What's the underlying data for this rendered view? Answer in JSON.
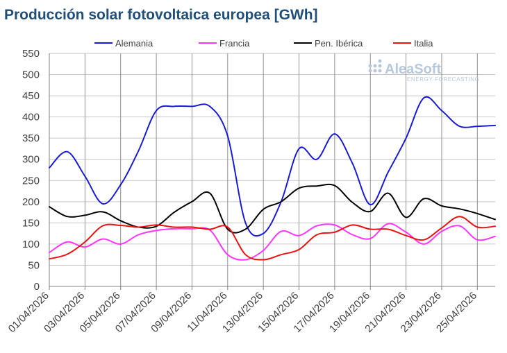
{
  "chart_data": {
    "type": "line",
    "title": "Producción solar fotovoltaica europea [GWh]",
    "xlabel": "",
    "ylabel": "",
    "ylim": [
      0,
      550
    ],
    "yticks": [
      0,
      50,
      100,
      150,
      200,
      250,
      300,
      350,
      400,
      450,
      500,
      550
    ],
    "grid": true,
    "legend_position": "top",
    "categories": [
      "01/04/2026",
      "02/04/2026",
      "03/04/2026",
      "04/04/2026",
      "05/04/2026",
      "06/04/2026",
      "07/04/2026",
      "08/04/2026",
      "09/04/2026",
      "10/04/2026",
      "11/04/2026",
      "12/04/2026",
      "13/04/2026",
      "14/04/2026",
      "15/04/2026",
      "16/04/2026",
      "17/04/2026",
      "18/04/2026",
      "19/04/2026",
      "20/04/2026",
      "21/04/2026",
      "22/04/2026",
      "23/04/2026",
      "24/04/2026",
      "25/04/2026",
      "26/04/2026"
    ],
    "xtick_labels": [
      "01/04/2026",
      "03/04/2026",
      "05/04/2026",
      "07/04/2026",
      "09/04/2026",
      "11/04/2026",
      "13/04/2026",
      "15/04/2026",
      "17/04/2026",
      "19/04/2026",
      "21/04/2026",
      "23/04/2026",
      "25/04/2026"
    ],
    "series": [
      {
        "name": "Alemania",
        "color": "#1a1adc",
        "values": [
          280,
          318,
          260,
          195,
          240,
          320,
          415,
          425,
          425,
          425,
          355,
          150,
          125,
          200,
          325,
          300,
          360,
          290,
          193,
          270,
          350,
          445,
          415,
          378,
          378,
          380
        ]
      },
      {
        "name": "Francia",
        "color": "#ff33ff",
        "values": [
          80,
          105,
          93,
          112,
          100,
          122,
          132,
          136,
          136,
          133,
          75,
          63,
          85,
          130,
          120,
          143,
          145,
          122,
          113,
          148,
          128,
          100,
          130,
          143,
          110,
          118
        ]
      },
      {
        "name": "Pen. Ibérica",
        "color": "#000000",
        "values": [
          188,
          165,
          168,
          176,
          155,
          140,
          142,
          175,
          200,
          220,
          135,
          135,
          182,
          200,
          232,
          237,
          238,
          198,
          177,
          220,
          163,
          207,
          190,
          183,
          172,
          158
        ]
      },
      {
        "name": "Italia",
        "color": "#ee1111",
        "values": [
          65,
          76,
          105,
          143,
          144,
          140,
          145,
          140,
          140,
          135,
          140,
          75,
          63,
          75,
          87,
          122,
          128,
          145,
          135,
          135,
          120,
          110,
          138,
          165,
          140,
          142
        ]
      }
    ]
  },
  "watermark": {
    "brand": "AleaSoft",
    "tagline": "ENERGY FORECASTING"
  }
}
